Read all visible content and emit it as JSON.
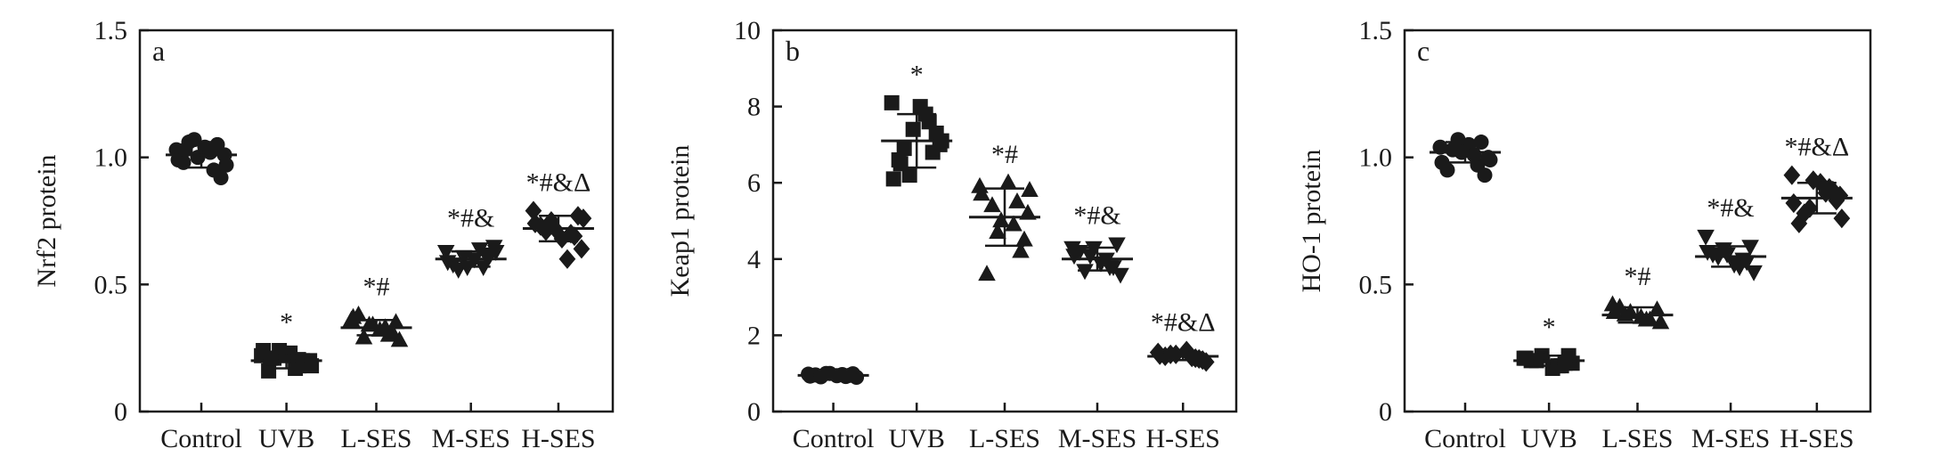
{
  "chart_data": [
    {
      "type": "scatter",
      "panel": "a",
      "ylabel": "Nrf2 protein",
      "ylim": [
        0,
        1.5
      ],
      "yticks": [
        "0",
        "0.5",
        "1.0",
        "1.5"
      ],
      "ytick_values": [
        0,
        0.5,
        1.0,
        1.5
      ],
      "categories": [
        "Control",
        "UVB",
        "L-SES",
        "M-SES",
        "H-SES"
      ],
      "markers": [
        "circle",
        "square",
        "triangle-up",
        "triangle-down",
        "diamond"
      ],
      "groups": [
        {
          "category": "Control",
          "mean": 1.01,
          "sd": 0.05,
          "annotation": "",
          "values": [
            1.03,
            0.95,
            1.07,
            1.01,
            0.98,
            1.04,
            0.92,
            1.06,
            1.02,
            0.99,
            1.05,
            1.0,
            0.97,
            1.03
          ]
        },
        {
          "category": "UVB",
          "mean": 0.2,
          "sd": 0.03,
          "annotation": "*",
          "values": [
            0.22,
            0.18,
            0.24,
            0.2,
            0.16,
            0.23,
            0.19,
            0.21,
            0.17,
            0.24,
            0.2,
            0.22,
            0.18,
            0.21
          ]
        },
        {
          "category": "L-SES",
          "mean": 0.33,
          "sd": 0.03,
          "annotation": "*#",
          "values": [
            0.36,
            0.3,
            0.34,
            0.28,
            0.38,
            0.32,
            0.35,
            0.29,
            0.33,
            0.37,
            0.31,
            0.34
          ]
        },
        {
          "category": "M-SES",
          "mean": 0.6,
          "sd": 0.03,
          "annotation": "*#&",
          "values": [
            0.63,
            0.57,
            0.61,
            0.65,
            0.58,
            0.6,
            0.62,
            0.56,
            0.64,
            0.59,
            0.61,
            0.57,
            0.63
          ]
        },
        {
          "category": "H-SES",
          "mean": 0.72,
          "sd": 0.05,
          "annotation": "*#&Δ",
          "values": [
            0.79,
            0.7,
            0.75,
            0.64,
            0.73,
            0.68,
            0.77,
            0.71,
            0.6,
            0.74,
            0.69,
            0.72,
            0.76
          ]
        }
      ]
    },
    {
      "type": "scatter",
      "panel": "b",
      "ylabel": "Keap1 protein",
      "ylim": [
        0,
        10
      ],
      "yticks": [
        "0",
        "2",
        "4",
        "6",
        "8",
        "10"
      ],
      "ytick_values": [
        0,
        2,
        4,
        6,
        8,
        10
      ],
      "categories": [
        "Control",
        "UVB",
        "L-SES",
        "M-SES",
        "H-SES"
      ],
      "markers": [
        "circle",
        "square",
        "triangle-up",
        "triangle-down",
        "diamond"
      ],
      "groups": [
        {
          "category": "Control",
          "mean": 0.95,
          "sd": 0.05,
          "annotation": "",
          "values": [
            0.98,
            0.92,
            1.0,
            0.9,
            0.96,
            0.94,
            0.99,
            0.91,
            0.97,
            0.93,
            0.95,
            1.0
          ]
        },
        {
          "category": "UVB",
          "mean": 7.1,
          "sd": 0.7,
          "annotation": "*",
          "values": [
            8.1,
            7.6,
            6.2,
            7.0,
            6.6,
            8.0,
            7.3,
            6.9,
            7.8,
            6.1,
            6.8,
            7.4,
            7.1,
            6.5
          ]
        },
        {
          "category": "L-SES",
          "mean": 5.1,
          "sd": 0.75,
          "annotation": "*#",
          "values": [
            5.9,
            5.5,
            4.7,
            5.2,
            3.6,
            6.0,
            4.5,
            5.4,
            4.9,
            5.7,
            4.2,
            5.0,
            5.8
          ]
        },
        {
          "category": "M-SES",
          "mean": 4.0,
          "sd": 0.3,
          "annotation": "*#&",
          "values": [
            4.3,
            3.8,
            4.1,
            3.6,
            4.2,
            3.9,
            4.4,
            3.7,
            4.0,
            4.1,
            3.8,
            4.3
          ]
        },
        {
          "category": "H-SES",
          "mean": 1.45,
          "sd": 0.1,
          "annotation": "*#&Δ",
          "values": [
            1.55,
            1.4,
            1.5,
            1.3,
            1.45,
            1.6,
            1.35,
            1.5,
            1.42,
            1.48,
            1.38
          ]
        }
      ]
    },
    {
      "type": "scatter",
      "panel": "c",
      "ylabel": "HO-1 protein",
      "ylim": [
        0,
        1.5
      ],
      "yticks": [
        "0",
        "0.5",
        "1.0",
        "1.5"
      ],
      "ytick_values": [
        0,
        0.5,
        1.0,
        1.5
      ],
      "categories": [
        "Control",
        "UVB",
        "L-SES",
        "M-SES",
        "H-SES"
      ],
      "markers": [
        "circle",
        "square",
        "triangle-up",
        "triangle-down",
        "diamond"
      ],
      "groups": [
        {
          "category": "Control",
          "mean": 1.02,
          "sd": 0.04,
          "annotation": "",
          "values": [
            1.04,
            0.97,
            1.07,
            1.0,
            0.95,
            1.05,
            0.93,
            1.03,
            1.01,
            0.98,
            1.06,
            1.02,
            0.99
          ]
        },
        {
          "category": "UVB",
          "mean": 0.2,
          "sd": 0.02,
          "annotation": "*",
          "values": [
            0.21,
            0.18,
            0.22,
            0.19,
            0.2,
            0.17,
            0.22,
            0.2,
            0.18,
            0.21,
            0.19
          ]
        },
        {
          "category": "L-SES",
          "mean": 0.38,
          "sd": 0.03,
          "annotation": "*#",
          "values": [
            0.42,
            0.36,
            0.39,
            0.35,
            0.41,
            0.37,
            0.4,
            0.38,
            0.36,
            0.39
          ]
        },
        {
          "category": "M-SES",
          "mean": 0.61,
          "sd": 0.04,
          "annotation": "*#&",
          "values": [
            0.69,
            0.6,
            0.64,
            0.55,
            0.62,
            0.58,
            0.65,
            0.61,
            0.57,
            0.63,
            0.59,
            0.62
          ]
        },
        {
          "category": "H-SES",
          "mean": 0.84,
          "sd": 0.06,
          "annotation": "*#&Δ",
          "values": [
            0.93,
            0.88,
            0.8,
            0.85,
            0.74,
            0.9,
            0.83,
            0.78,
            0.86,
            0.82,
            0.87,
            0.91,
            0.76
          ]
        }
      ]
    }
  ]
}
